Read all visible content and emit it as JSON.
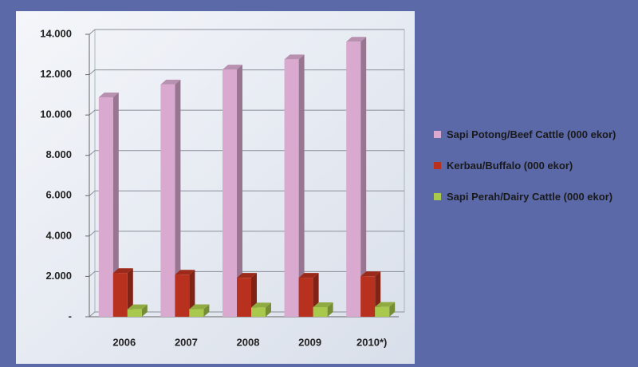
{
  "chart_data": {
    "type": "bar",
    "categories": [
      "2006",
      "2007",
      "2008",
      "2009",
      "2010*)"
    ],
    "series": [
      {
        "name": "Sapi Potong/Beef Cattle (000 ekor)",
        "color": "#d9a9cf",
        "values": [
          10875,
          11515,
          12257,
          12760,
          13633
        ]
      },
      {
        "name": "Kerbau/Buffalo (000 ekor)",
        "color": "#b8311f",
        "values": [
          2167,
          2086,
          1931,
          1933,
          2005
        ]
      },
      {
        "name": "Sapi Perah/Dairy Cattle (000 ekor)",
        "color": "#a9c94c",
        "values": [
          369,
          374,
          458,
          475,
          488
        ]
      }
    ],
    "ylim": [
      0,
      14000
    ],
    "yticks": [
      {
        "value": 0,
        "label": "-"
      },
      {
        "value": 2000,
        "label": "2.000"
      },
      {
        "value": 4000,
        "label": "4.000"
      },
      {
        "value": 6000,
        "label": "6.000"
      },
      {
        "value": 8000,
        "label": "8.000"
      },
      {
        "value": 10000,
        "label": "10.000"
      },
      {
        "value": 12000,
        "label": "12.000"
      },
      {
        "value": 14000,
        "label": "14.000"
      }
    ],
    "grid": true,
    "legend": "right"
  }
}
